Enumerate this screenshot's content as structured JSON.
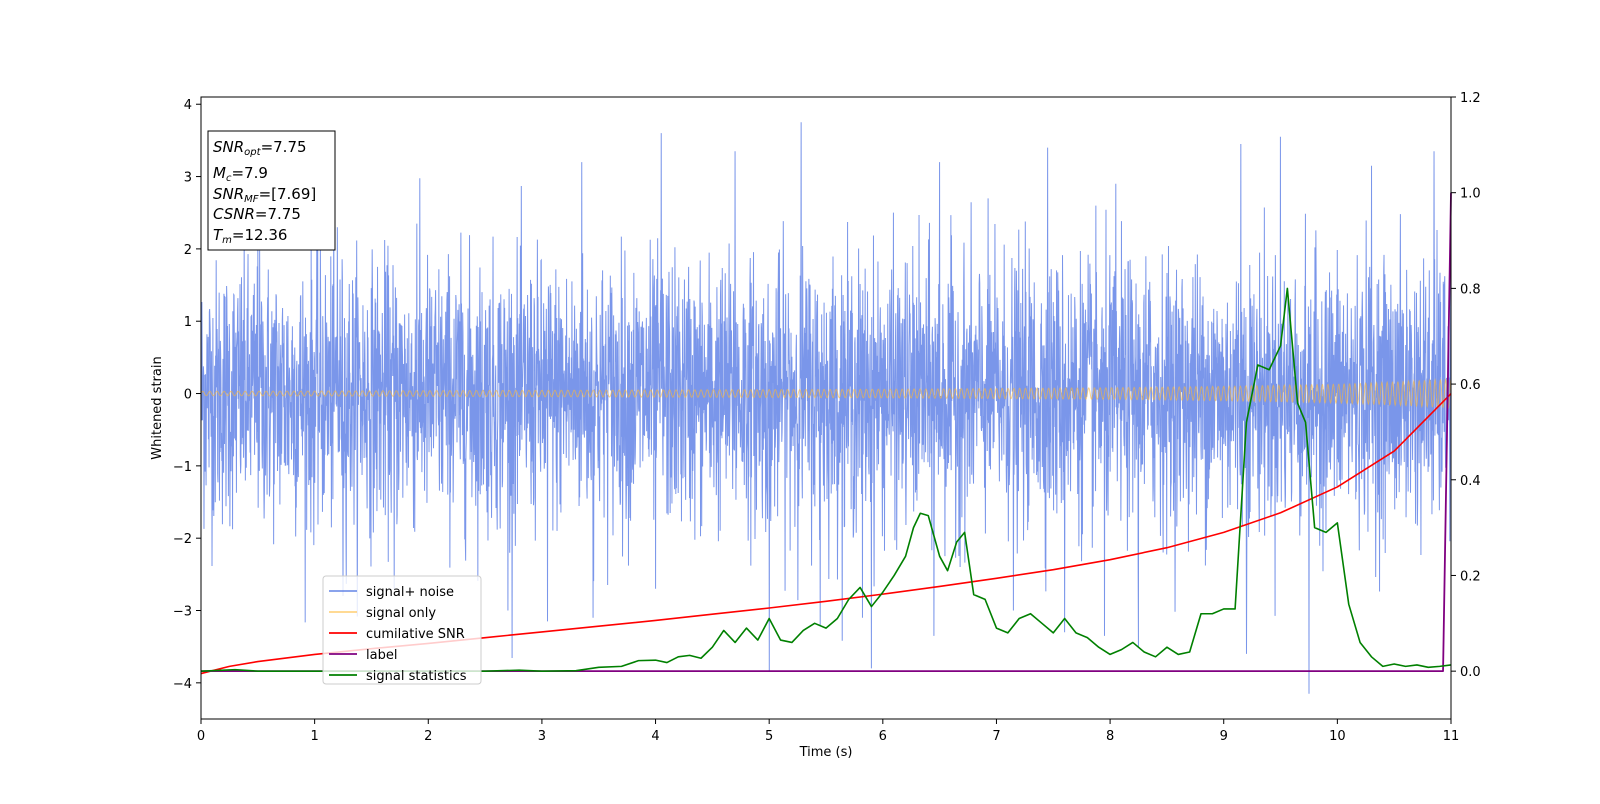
{
  "chart_data": {
    "type": "line",
    "title": "",
    "xlabel": "Time (s)",
    "ylabel": "Whitened strain",
    "xlim": [
      0,
      11
    ],
    "ylim_left": [
      -4.5,
      4.1
    ],
    "ylim_right": [
      -0.1,
      1.2
    ],
    "x_ticks": [
      "0",
      "1",
      "2",
      "3",
      "4",
      "5",
      "6",
      "7",
      "8",
      "9",
      "10",
      "11"
    ],
    "y_left_ticks": [
      "−4",
      "−3",
      "−2",
      "−1",
      "0",
      "1",
      "2",
      "3",
      "4"
    ],
    "y_right_ticks": [
      "0.0",
      "0.2",
      "0.4",
      "0.6",
      "0.8",
      "1.0",
      "1.2"
    ],
    "grid": false,
    "legend_position": "lower-left",
    "info_box": {
      "snr_opt": {
        "symbol": "SNR",
        "sub": "opt",
        "rest": "=7.75"
      },
      "mc": {
        "symbol": "M",
        "sub": "c",
        "rest": "=7.9"
      },
      "snr_mf": {
        "symbol": "SNR",
        "sub": "MF",
        "rest": "=[7.69]"
      },
      "csnr": {
        "symbol": "CSNR",
        "sub": "",
        "rest": "=7.75"
      },
      "tm": {
        "symbol": "T",
        "sub": "m",
        "rest": "=12.36"
      }
    },
    "series": [
      {
        "name": "signal+ noise",
        "color": "#4169e1",
        "axis": "left",
        "kind": "noise",
        "typical_band": [
          -2.0,
          2.0
        ],
        "spikes": [
          [
            0.5,
            2.3
          ],
          [
            1.2,
            2.3
          ],
          [
            1.9,
            2.35
          ],
          [
            3.35,
            3.2
          ],
          [
            4.05,
            3.6
          ],
          [
            4.7,
            3.35
          ],
          [
            5.28,
            3.75
          ],
          [
            5.9,
            3.1
          ],
          [
            6.5,
            3.2
          ],
          [
            7.45,
            3.4
          ],
          [
            8.05,
            2.9
          ],
          [
            9.15,
            3.45
          ],
          [
            9.5,
            3.55
          ],
          [
            10.3,
            3.15
          ],
          [
            10.85,
            3.35
          ],
          [
            1.25,
            -2.8
          ],
          [
            1.7,
            -2.7
          ],
          [
            2.7,
            -3.0
          ],
          [
            3.05,
            -3.15
          ],
          [
            3.45,
            -3.1
          ],
          [
            4.0,
            -2.7
          ],
          [
            5.0,
            -3.85
          ],
          [
            5.45,
            -3.2
          ],
          [
            5.82,
            -3.1
          ],
          [
            5.9,
            -3.8
          ],
          [
            6.45,
            -3.35
          ],
          [
            7.15,
            -3.0
          ],
          [
            7.6,
            -3.3
          ],
          [
            7.95,
            -3.35
          ],
          [
            8.25,
            -3.5
          ],
          [
            9.2,
            -3.6
          ],
          [
            9.75,
            -4.15
          ]
        ]
      },
      {
        "name": "signal only",
        "color": "#ffb833",
        "axis": "left",
        "kind": "chirp",
        "x": [
          0,
          2,
          4,
          6,
          8,
          9,
          10,
          10.5,
          11
        ],
        "amplitude": [
          0.03,
          0.04,
          0.05,
          0.06,
          0.08,
          0.1,
          0.13,
          0.16,
          0.2
        ]
      },
      {
        "name": "cumilative SNR",
        "color": "#ff0000",
        "axis": "right",
        "x": [
          0,
          0.25,
          0.5,
          1,
          1.5,
          2,
          2.5,
          3,
          3.5,
          4,
          4.5,
          5,
          5.5,
          6,
          6.5,
          7,
          7.5,
          8,
          8.5,
          9,
          9.5,
          10,
          10.5,
          11
        ],
        "y": [
          -0.005,
          0.01,
          0.02,
          0.035,
          0.047,
          0.058,
          0.07,
          0.082,
          0.094,
          0.106,
          0.119,
          0.132,
          0.146,
          0.161,
          0.177,
          0.194,
          0.212,
          0.233,
          0.258,
          0.29,
          0.331,
          0.385,
          0.46,
          0.58
        ]
      },
      {
        "name": "label",
        "color": "#800080",
        "axis": "right",
        "x": [
          0,
          10.93,
          11
        ],
        "y": [
          0,
          0,
          1
        ]
      },
      {
        "name": "signal statistics",
        "color": "#008000",
        "axis": "right",
        "x": [
          0,
          0.3,
          0.5,
          1,
          2,
          2.5,
          2.8,
          3,
          3.3,
          3.5,
          3.7,
          3.85,
          4.0,
          4.1,
          4.2,
          4.3,
          4.4,
          4.5,
          4.6,
          4.7,
          4.8,
          4.9,
          5.0,
          5.1,
          5.2,
          5.3,
          5.4,
          5.5,
          5.6,
          5.7,
          5.8,
          5.9,
          6.0,
          6.1,
          6.2,
          6.27,
          6.33,
          6.4,
          6.5,
          6.57,
          6.65,
          6.72,
          6.8,
          6.9,
          7.0,
          7.1,
          7.2,
          7.3,
          7.4,
          7.5,
          7.6,
          7.7,
          7.8,
          7.9,
          8.0,
          8.1,
          8.2,
          8.3,
          8.4,
          8.5,
          8.6,
          8.7,
          8.8,
          8.9,
          9.0,
          9.1,
          9.2,
          9.3,
          9.4,
          9.5,
          9.56,
          9.65,
          9.72,
          9.8,
          9.9,
          10.0,
          10.1,
          10.2,
          10.3,
          10.4,
          10.5,
          10.6,
          10.7,
          10.8,
          10.9,
          11
        ],
        "y": [
          0,
          0.003,
          0,
          0,
          0,
          0,
          0.002,
          0,
          0.001,
          0.008,
          0.01,
          0.022,
          0.023,
          0.018,
          0.03,
          0.033,
          0.027,
          0.05,
          0.085,
          0.06,
          0.09,
          0.065,
          0.11,
          0.065,
          0.06,
          0.085,
          0.1,
          0.09,
          0.11,
          0.15,
          0.175,
          0.135,
          0.165,
          0.2,
          0.24,
          0.3,
          0.33,
          0.325,
          0.24,
          0.21,
          0.27,
          0.29,
          0.16,
          0.15,
          0.09,
          0.08,
          0.11,
          0.12,
          0.1,
          0.08,
          0.11,
          0.08,
          0.07,
          0.05,
          0.035,
          0.045,
          0.06,
          0.04,
          0.03,
          0.05,
          0.035,
          0.04,
          0.12,
          0.12,
          0.13,
          0.13,
          0.52,
          0.64,
          0.63,
          0.68,
          0.8,
          0.56,
          0.52,
          0.3,
          0.29,
          0.31,
          0.14,
          0.06,
          0.03,
          0.01,
          0.015,
          0.01,
          0.013,
          0.008,
          0.01,
          0.013
        ]
      }
    ]
  }
}
